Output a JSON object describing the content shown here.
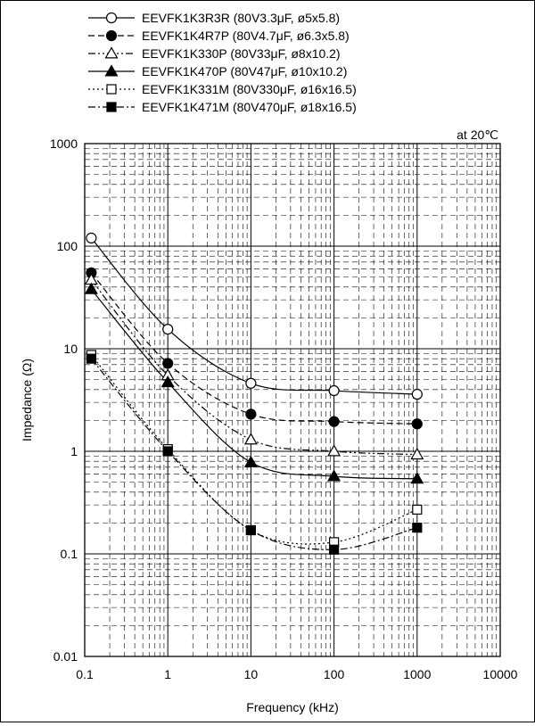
{
  "chart_data": {
    "type": "line",
    "xscale": "log",
    "yscale": "log",
    "xlabel": "Frequency (kHz)",
    "ylabel": "Impedance (Ω)",
    "xlim": [
      0.1,
      10000
    ],
    "ylim": [
      0.01,
      1000
    ],
    "x_ticks": [
      "0.1",
      "1",
      "10",
      "100",
      "1000",
      "10000"
    ],
    "y_ticks": [
      "0.01",
      "0.1",
      "1",
      "10",
      "100",
      "1000"
    ],
    "annotation": "at 20℃",
    "grid": true,
    "legend_position": "top",
    "series": [
      {
        "name": "EEVFK1K3R3R (80V3.3μF, ø5x5.8)",
        "marker": "circle-open",
        "dash": "solid",
        "x": [
          0.12,
          1,
          10,
          100,
          1000
        ],
        "y": [
          120,
          15.5,
          4.6,
          3.9,
          3.6
        ]
      },
      {
        "name": "EEVFK1K4R7P (80V4.7μF, ø6.3x5.8)",
        "marker": "circle-filled",
        "dash": "dashed",
        "x": [
          0.12,
          1,
          10,
          100,
          1000
        ],
        "y": [
          55,
          7.2,
          2.3,
          1.95,
          1.85
        ]
      },
      {
        "name": "EEVFK1K330P (80V33μF, ø8x10.2)",
        "marker": "triangle-open",
        "dash": "dash-dot-dot",
        "x": [
          0.12,
          1,
          10,
          100,
          1000
        ],
        "y": [
          47,
          5.5,
          1.3,
          1.0,
          0.93
        ]
      },
      {
        "name": "EEVFK1K470P (80V47μF, ø10x10.2)",
        "marker": "triangle-filled",
        "dash": "solid",
        "x": [
          0.12,
          1,
          10,
          100,
          1000
        ],
        "y": [
          38,
          4.7,
          0.78,
          0.57,
          0.54
        ]
      },
      {
        "name": "EEVFK1K331M (80V330μF, ø16x16.5)",
        "marker": "square-open",
        "dash": "dotted",
        "x": [
          0.12,
          1,
          10,
          100,
          1000
        ],
        "y": [
          8.7,
          1.05,
          0.17,
          0.13,
          0.27
        ]
      },
      {
        "name": "EEVFK1K471M (80V470μF, ø18x16.5)",
        "marker": "square-filled",
        "dash": "dash-dot",
        "x": [
          0.12,
          1,
          10,
          100,
          1000
        ],
        "y": [
          8.0,
          1.0,
          0.17,
          0.11,
          0.18
        ]
      }
    ]
  }
}
